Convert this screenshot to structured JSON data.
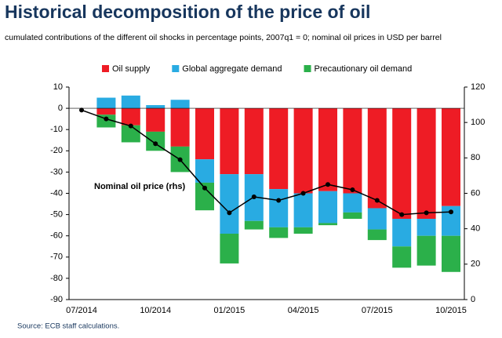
{
  "chart_data": {
    "type": "bar",
    "title": "Historical decomposition of the price of oil",
    "subtitle": "cumulated contributions of the different oil shocks in percentage points, 2007q1 = 0; nominal oil prices in USD per barrel",
    "source": "Source: ECB staff calculations.",
    "annotation": "Nominal oil price (rhs)",
    "categories": [
      "07/2014",
      null,
      null,
      "10/2014",
      null,
      null,
      "01/2015",
      null,
      null,
      "04/2015",
      null,
      null,
      "07/2015",
      null,
      null,
      "10/2015"
    ],
    "series": [
      {
        "name": "Oil supply",
        "color": "#ee1c25",
        "values": [
          null,
          -3,
          -8,
          -11,
          -18,
          -24,
          -31,
          -31,
          -38,
          -40,
          -39,
          -40,
          -47,
          -52,
          -52,
          -46
        ]
      },
      {
        "name": "Global aggregate demand",
        "color": "#29abe2",
        "values": [
          null,
          5,
          6,
          1.5,
          4,
          -11,
          -28,
          -22,
          -18,
          -16,
          -15,
          -9,
          -10,
          -13,
          -8,
          -14
        ]
      },
      {
        "name": "Precautionary oil demand",
        "color": "#2bb04a",
        "values": [
          null,
          -6,
          -8,
          -9,
          -12,
          -13,
          -14,
          -4,
          -5,
          -3,
          -1,
          -3,
          -5,
          -10,
          -14,
          -17
        ]
      },
      {
        "name": "Nominal oil price",
        "color": "#000000",
        "axis": "y2",
        "type": "line",
        "values": [
          107,
          102,
          98,
          88,
          79,
          63,
          49,
          58,
          56,
          60,
          65,
          62,
          56,
          48,
          49,
          49.5
        ]
      }
    ],
    "ylim": [
      -90,
      10
    ],
    "yticks": [
      -90,
      -80,
      -70,
      -60,
      -50,
      -40,
      -30,
      -20,
      -10,
      0,
      10
    ],
    "y2lim": [
      0,
      120
    ],
    "y2ticks": [
      0,
      20,
      40,
      60,
      80,
      100,
      120
    ],
    "legend": "top"
  }
}
